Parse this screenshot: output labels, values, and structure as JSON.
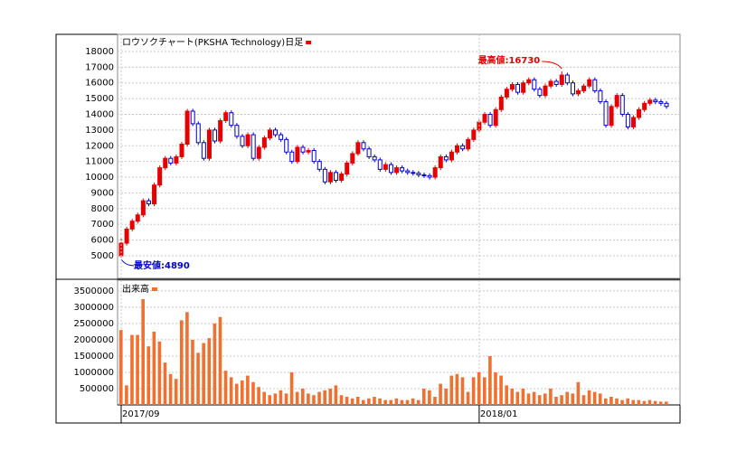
{
  "chart_data": [
    {
      "type": "candlestick",
      "title": "ロウソクチャート(PKSHA Technology)日足",
      "up_color": "#e60000",
      "down_color": "#0000cc",
      "high_label": "最高値:16730",
      "low_label": "最安値:4890",
      "open": [
        5000,
        5800,
        6700,
        7200,
        7600,
        8500,
        8300,
        9500,
        10600,
        11200,
        10900,
        11300,
        12100,
        14200,
        13400,
        12200,
        11200,
        13000,
        12300,
        13600,
        14100,
        13300,
        12600,
        12000,
        12700,
        11200,
        11900,
        12500,
        13000,
        12700,
        12400,
        11600,
        11000,
        11900,
        11600,
        11700,
        11000,
        10500,
        9700,
        10300,
        9800,
        10200,
        10900,
        11500,
        12200,
        11800,
        11300,
        11100,
        10500,
        10800,
        10300,
        10600,
        10400,
        10300,
        10250,
        10150,
        10100,
        10000,
        10600,
        11300,
        11100,
        11600,
        12000,
        11800,
        12400,
        13000,
        13500,
        14000,
        13300,
        14300,
        15100,
        15600,
        15900,
        15400,
        16000,
        16200,
        15600,
        15200,
        15800,
        16100,
        15900,
        16500,
        16000,
        15300,
        15500,
        15800,
        16200,
        15500,
        14800,
        13300,
        14500,
        15200,
        14000,
        13200,
        13800,
        14300,
        14700,
        14900,
        14800,
        14700
      ],
      "high": [
        6100,
        6850,
        7350,
        7750,
        8650,
        8650,
        9650,
        10750,
        11350,
        11350,
        11450,
        12250,
        14350,
        14350,
        13550,
        12350,
        13150,
        13150,
        13750,
        14250,
        14250,
        13450,
        12750,
        12850,
        12850,
        12050,
        12650,
        13150,
        13150,
        12850,
        12550,
        11750,
        12050,
        12050,
        11850,
        11850,
        11150,
        10650,
        10450,
        10450,
        10350,
        11050,
        11650,
        12350,
        12350,
        11950,
        11450,
        11250,
        10950,
        10950,
        10750,
        10750,
        10550,
        10450,
        10400,
        10300,
        10250,
        10750,
        11450,
        11450,
        11750,
        12150,
        12150,
        12550,
        13150,
        13650,
        14150,
        14150,
        14450,
        15250,
        15750,
        16050,
        16050,
        16150,
        16350,
        16350,
        15750,
        15950,
        16250,
        16250,
        16730,
        16650,
        16150,
        15650,
        15950,
        16350,
        16350,
        15650,
        14950,
        14650,
        15350,
        15350,
        14150,
        13950,
        14450,
        14850,
        15050,
        15050,
        14950,
        14850
      ],
      "low": [
        4890,
        5650,
        6550,
        7050,
        7450,
        8150,
        8150,
        9350,
        10450,
        10750,
        10750,
        11150,
        11950,
        13250,
        12050,
        11050,
        11050,
        12150,
        12150,
        13450,
        13150,
        12450,
        11850,
        11850,
        11050,
        11050,
        11750,
        12350,
        12550,
        12250,
        11450,
        10850,
        10850,
        11450,
        11450,
        10850,
        10350,
        9550,
        9550,
        9650,
        9650,
        10050,
        10750,
        11350,
        11650,
        11150,
        10950,
        10350,
        10350,
        10150,
        10150,
        10250,
        10150,
        10100,
        10000,
        9950,
        9850,
        9850,
        10450,
        10950,
        10950,
        11450,
        11650,
        11650,
        12250,
        12850,
        13350,
        13150,
        13150,
        14150,
        14950,
        15450,
        15250,
        15250,
        15850,
        15450,
        15050,
        15050,
        15650,
        15750,
        15750,
        15850,
        15150,
        15150,
        15350,
        15650,
        15350,
        14650,
        13150,
        13150,
        14350,
        13850,
        13050,
        13050,
        13650,
        14150,
        14550,
        14650,
        14550,
        14350
      ],
      "close": [
        5800,
        6700,
        7200,
        7600,
        8500,
        8300,
        9500,
        10600,
        11200,
        10900,
        11300,
        12100,
        14200,
        13400,
        12200,
        11200,
        13000,
        12300,
        13600,
        14100,
        13300,
        12600,
        12000,
        12700,
        11200,
        11900,
        12500,
        13000,
        12700,
        12400,
        11600,
        11000,
        11900,
        11600,
        11700,
        11000,
        10500,
        9700,
        10300,
        9800,
        10200,
        10900,
        11500,
        12200,
        11800,
        11300,
        11100,
        10500,
        10800,
        10300,
        10600,
        10400,
        10300,
        10250,
        10150,
        10100,
        10000,
        10600,
        11300,
        11100,
        11600,
        12000,
        11800,
        12400,
        13000,
        13500,
        14000,
        13300,
        14300,
        15100,
        15600,
        15900,
        15400,
        16000,
        16200,
        15600,
        15200,
        15800,
        16100,
        15900,
        16500,
        16000,
        15300,
        15500,
        15800,
        16200,
        15500,
        14800,
        13300,
        14500,
        15200,
        14000,
        13200,
        13800,
        14300,
        14700,
        14900,
        14800,
        14700,
        14500
      ],
      "ylim": [
        3560,
        19090
      ],
      "yticks": [
        5000,
        6000,
        7000,
        8000,
        9000,
        10000,
        11000,
        12000,
        13000,
        14000,
        15000,
        16000,
        17000,
        18000
      ],
      "grid": true
    },
    {
      "type": "bar",
      "title": "出来高",
      "color": "#f07030",
      "categories": [
        "2017/09",
        null,
        null,
        null,
        null,
        null,
        null,
        null,
        null,
        null,
        null,
        null,
        null,
        null,
        null,
        null,
        null,
        null,
        null,
        null,
        null,
        null,
        null,
        null,
        null,
        null,
        null,
        null,
        null,
        null,
        null,
        null,
        null,
        null,
        null,
        null,
        null,
        null,
        null,
        null,
        null,
        null,
        null,
        null,
        null,
        null,
        null,
        null,
        null,
        null,
        null,
        null,
        null,
        null,
        null,
        null,
        null,
        null,
        null,
        null,
        null,
        null,
        null,
        null,
        null,
        "2018/01",
        null,
        null,
        null,
        null,
        null,
        null,
        null,
        null,
        null,
        null,
        null,
        null,
        null,
        null,
        null,
        null,
        null,
        null,
        null,
        null,
        null,
        null,
        null,
        null,
        null,
        null,
        null,
        null,
        null,
        null,
        null,
        null,
        null,
        null
      ],
      "values": [
        2300000,
        600000,
        2150000,
        2150000,
        3250000,
        1800000,
        2250000,
        1950000,
        1300000,
        950000,
        800000,
        2600000,
        2850000,
        2000000,
        1600000,
        1900000,
        2050000,
        2500000,
        2700000,
        1050000,
        850000,
        650000,
        750000,
        900000,
        700000,
        550000,
        400000,
        300000,
        350000,
        450000,
        350000,
        1000000,
        400000,
        500000,
        350000,
        300000,
        400000,
        450000,
        500000,
        600000,
        300000,
        250000,
        200000,
        250000,
        150000,
        200000,
        250000,
        200000,
        150000,
        150000,
        200000,
        150000,
        150000,
        200000,
        150000,
        500000,
        450000,
        250000,
        650000,
        500000,
        900000,
        950000,
        850000,
        400000,
        850000,
        1000000,
        850000,
        1500000,
        1000000,
        900000,
        600000,
        500000,
        400000,
        500000,
        350000,
        400000,
        300000,
        350000,
        500000,
        250000,
        300000,
        400000,
        350000,
        700000,
        300000,
        450000,
        400000,
        350000,
        200000,
        250000,
        200000,
        150000,
        200000,
        150000,
        150000,
        120000,
        150000,
        120000,
        100000,
        100000
      ],
      "ylim": [
        0,
        3830000
      ],
      "yticks": [
        500000,
        1000000,
        1500000,
        2000000,
        2500000,
        3000000,
        3500000
      ],
      "grid": true
    }
  ]
}
